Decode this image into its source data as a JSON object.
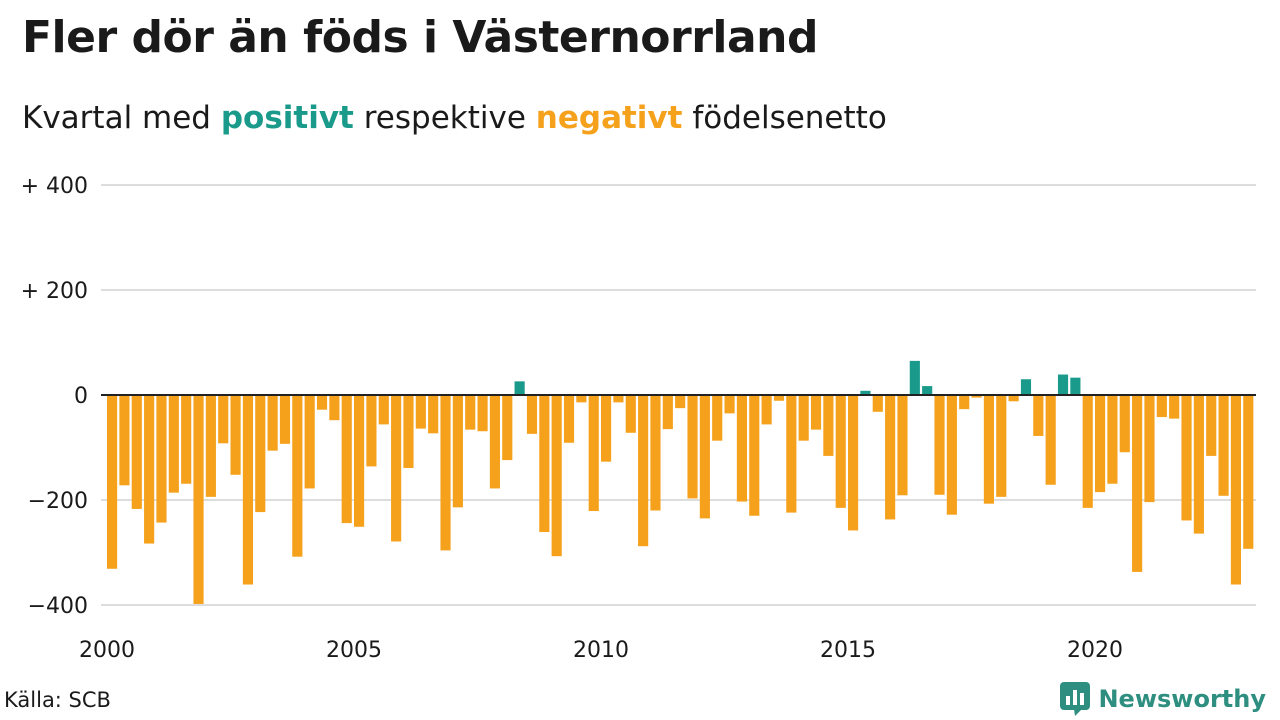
{
  "title": "Fler dör än föds i Västernorrland",
  "subtitle": {
    "prefix": "Kvartal med ",
    "positive": "positivt",
    "middle": " respektive ",
    "negative": "negativt",
    "suffix": " födelsenetto"
  },
  "colors": {
    "positive": "#1a9a8a",
    "negative": "#f5a11c",
    "grid": "#dddddd",
    "zero_line": "#222222",
    "brand": "#2e8f80"
  },
  "source": "Källa: SCB",
  "logo": {
    "text": "Newsworthy",
    "icon": "bar-chart-speech-icon"
  },
  "chart_data": {
    "type": "bar",
    "title": "Fler dör än föds i Västernorrland",
    "subtitle": "Kvartal med positivt respektive negativt födelsenetto",
    "xlabel": "",
    "ylabel": "",
    "x_start": "2000-Q1",
    "frequency": "quarterly",
    "x_ticks": [
      "2000",
      "2005",
      "2010",
      "2015",
      "2020"
    ],
    "y_ticks": [
      "+ 400",
      "+ 200",
      "0",
      "−200",
      "−400"
    ],
    "y_tick_values": [
      400,
      200,
      0,
      -200,
      -400
    ],
    "ylim": [
      -400,
      400
    ],
    "grid": true,
    "values": [
      -331,
      -172,
      -217,
      -283,
      -243,
      -186,
      -169,
      -398,
      -194,
      -92,
      -152,
      -361,
      -223,
      -106,
      -93,
      -308,
      -178,
      -28,
      -48,
      -244,
      -251,
      -136,
      -56,
      -279,
      -139,
      -64,
      -73,
      -296,
      -214,
      -66,
      -69,
      -178,
      -124,
      26,
      -74,
      -261,
      -307,
      -91,
      -14,
      -221,
      -127,
      -14,
      -72,
      -288,
      -220,
      -65,
      -25,
      -197,
      -235,
      -87,
      -35,
      -203,
      -230,
      -56,
      -11,
      -224,
      -87,
      -66,
      -116,
      -215,
      -258,
      8,
      -32,
      -237,
      -191,
      65,
      17,
      -190,
      -228,
      -27,
      -5,
      -207,
      -194,
      -12,
      30,
      -78,
      -171,
      39,
      33,
      -215,
      -185,
      -169,
      -109,
      -337,
      -204,
      -42,
      -45,
      -239,
      -264,
      -116,
      -192,
      -361,
      -293
    ]
  }
}
